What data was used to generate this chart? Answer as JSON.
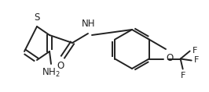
{
  "bg_color": "#ffffff",
  "line_color": "#222222",
  "line_width": 1.4,
  "font_size": 8.5,
  "figsize": [
    2.66,
    1.18
  ],
  "dpi": 100,
  "xlim": [
    0,
    266
  ],
  "ylim": [
    0,
    118
  ]
}
